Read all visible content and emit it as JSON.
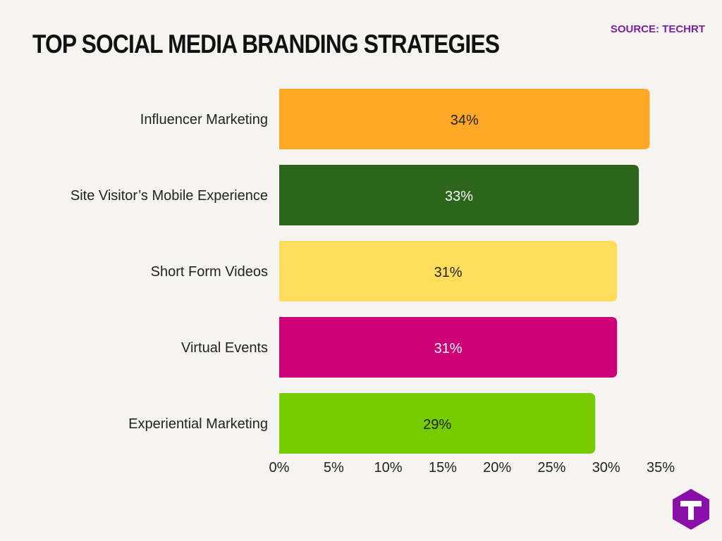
{
  "header": {
    "title": "TOP SOCIAL MEDIA BRANDING STRATEGIES",
    "source": "SOURCE: TECHRT"
  },
  "logo": {
    "icon": "techrt-logo-icon",
    "letter": "T",
    "color": "#8a0fa8"
  },
  "chart_data": {
    "type": "bar",
    "orientation": "horizontal",
    "categories": [
      "Influencer Marketing",
      "Site Visitor’s Mobile Experience",
      "Short Form Videos",
      "Virtual Events",
      "Experiential Marketing"
    ],
    "values": [
      34,
      33,
      31,
      31,
      29
    ],
    "value_labels": [
      "34%",
      "33%",
      "31%",
      "31%",
      "29%"
    ],
    "colors": [
      "#ffa726",
      "#2e651c",
      "#ffdd5c",
      "#cc0077",
      "#76cc00"
    ],
    "label_colors": [
      "#222222",
      "#ffffff",
      "#222222",
      "#ffffff",
      "#222222"
    ],
    "xlim": [
      0,
      35
    ],
    "xticks": [
      0,
      5,
      10,
      15,
      20,
      25,
      30,
      35
    ],
    "xtick_labels": [
      "0%",
      "5%",
      "10%",
      "15%",
      "20%",
      "25%",
      "30%",
      "35%"
    ],
    "grid": false,
    "legend": "none"
  }
}
